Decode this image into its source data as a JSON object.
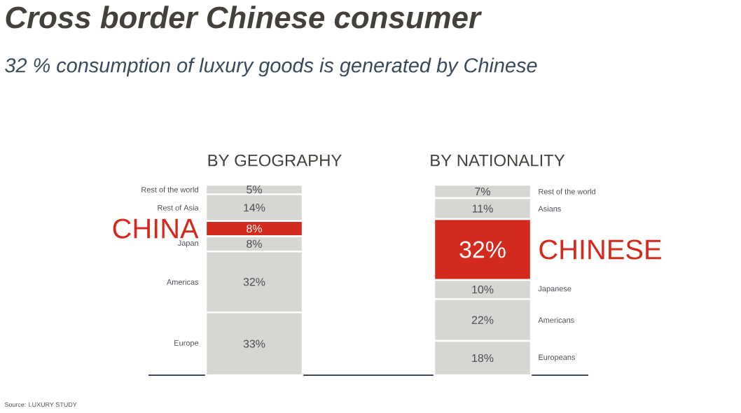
{
  "chart_data": [
    {
      "type": "bar",
      "stacked": true,
      "title": "BY GEOGRAPHY",
      "categories": [
        null
      ],
      "annotations": [
        "Cross border Chinese consumer",
        "32 % consumption of luxury goods is generated by Chinese",
        "Source: LUXURY STUDY"
      ],
      "series": [
        {
          "name": "Europe",
          "color": "#d6d6d2",
          "values": [
            33
          ],
          "value_labels": [
            "33%"
          ]
        },
        {
          "name": "Americas",
          "color": "#d6d6d2",
          "values": [
            32
          ],
          "value_labels": [
            "32%"
          ]
        },
        {
          "name": "Japan",
          "color": "#d6d6d2",
          "values": [
            8
          ],
          "value_labels": [
            "8%"
          ]
        },
        {
          "name": "CHINA",
          "color": "#d42a1e",
          "values": [
            8
          ],
          "value_labels": [
            "8%"
          ]
        },
        {
          "name": "Rest of Asia",
          "color": "#d6d6d2",
          "values": [
            14
          ],
          "value_labels": [
            "14%"
          ]
        },
        {
          "name": "Rest of the world",
          "color": "#d6d6d2",
          "values": [
            5
          ],
          "value_labels": [
            "5%"
          ]
        }
      ]
    },
    {
      "type": "bar",
      "stacked": true,
      "title": "BY NATIONALITY",
      "categories": [
        null
      ],
      "series": [
        {
          "name": "Europeans",
          "color": "#d6d6d2",
          "values": [
            18
          ],
          "value_labels": [
            "18%"
          ]
        },
        {
          "name": "Americans",
          "color": "#d6d6d2",
          "values": [
            22
          ],
          "value_labels": [
            "22%"
          ]
        },
        {
          "name": "Japanese",
          "color": "#d6d6d2",
          "values": [
            10
          ],
          "value_labels": [
            "10%"
          ]
        },
        {
          "name": "CHINESE",
          "color": "#d42a1e",
          "values": [
            32
          ],
          "value_labels": [
            "32%"
          ]
        },
        {
          "name": "Asians",
          "color": "#d6d6d2",
          "values": [
            11
          ],
          "value_labels": [
            "11%"
          ]
        },
        {
          "name": "Rest of the world",
          "color": "#d6d6d2",
          "values": [
            7
          ],
          "value_labels": [
            "7%"
          ]
        }
      ]
    }
  ]
}
